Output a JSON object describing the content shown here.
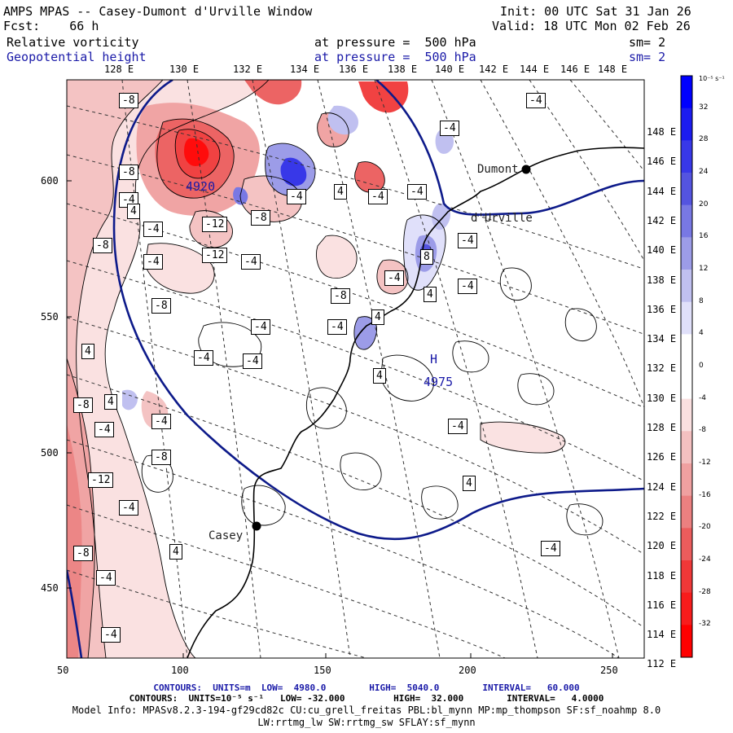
{
  "header": {
    "title": "AMPS MPAS -- Casey-Dumont d'Urville Window",
    "init": "Init: 00 UTC Sat 31 Jan 26",
    "fcst": "Fcst:    66 h",
    "valid": "Valid: 18 UTC Mon 02 Feb 26",
    "field1_name": "Relative vorticity",
    "field1_level": "at pressure =  500 hPa",
    "field1_sm": "sm= 2",
    "field2_name": "Geopotential height",
    "field2_level": "at pressure =  500 hPa",
    "field2_sm": "sm= 2"
  },
  "top_lon_labels": [
    "128 E",
    "130 E",
    "132 E",
    "134 E",
    "136 E",
    "138 E",
    "140 E",
    "142 E",
    "144 E",
    "146 E",
    "148 E"
  ],
  "right_lat_labels": [
    "148 E",
    "146 E",
    "144 E",
    "142 E",
    "140 E",
    "138 E",
    "136 E",
    "134 E",
    "132 E",
    "130 E",
    "128 E",
    "126 E",
    "124 E",
    "122 E",
    "120 E",
    "118 E",
    "116 E",
    "114 E",
    "112 E"
  ],
  "x_axis_labels": [
    "50",
    "100",
    "150",
    "200",
    "250"
  ],
  "y_axis_labels": [
    "600",
    "550",
    "500",
    "450"
  ],
  "colorbar": {
    "unit_label": "10⁻⁵ s⁻¹",
    "tick_labels": [
      "32",
      "28",
      "24",
      "20",
      "16",
      "12",
      "8",
      "4",
      "0",
      "-4",
      "-8",
      "-12",
      "-16",
      "-20",
      "-24",
      "-28",
      "-32"
    ],
    "colors": [
      "#0000ff",
      "#1c1cf0",
      "#3838e8",
      "#5454e0",
      "#7878e4",
      "#9c9ce8",
      "#c0c0f0",
      "#e0e0fa",
      "#ffffff",
      "#ffffff",
      "#fae0e0",
      "#f4c0c0",
      "#f0a0a0",
      "#ec8080",
      "#ec5c5c",
      "#f03838",
      "#f81c1c",
      "#ff0000"
    ]
  },
  "stations": {
    "dumont_label": "Dumont\nd'Urville",
    "dumont_line1": "Dumont",
    "dumont_line2": "d'Urville",
    "casey_label": "Casey"
  },
  "contour_labels": [
    "-8",
    "-8",
    "-4",
    "-4",
    "-4",
    "-4",
    "4",
    "-4",
    "-4",
    "-8",
    "-12",
    "-8",
    "-4",
    "-12",
    "-4",
    "-8",
    "-4",
    "-8",
    "-4",
    "-4",
    "8",
    "-4",
    "-4",
    "4",
    "-4",
    "-4",
    "4",
    "4",
    "-4",
    "4",
    "-8",
    "4",
    "-4",
    "-4",
    "-4",
    "-12",
    "-4",
    "4",
    "-4",
    "-8",
    "-4",
    "-8",
    "4",
    "-4",
    "4"
  ],
  "height_labels": [
    {
      "text": "4920"
    },
    {
      "text": "H"
    },
    {
      "text": "4975"
    }
  ],
  "footer": {
    "line1": "CONTOURS:  UNITS=m  LOW=  4980.0        HIGH=  5040.0        INTERVAL=   60.000",
    "line2": "CONTOURS:  UNITS=10⁻⁵ s⁻¹   LOW= -32.000         HIGH=  32.000        INTERVAL=   4.0000",
    "line3": "Model Info: MPASv8.2.3-194-gf29cd82c CU:cu_grell_freitas PBL:bl_mynn MP:mp_thompson SF:sf_noahmp 8.0",
    "line4": "LW:rrtmg_lw SW:rrtmg_sw SFLAY:sf_mynn"
  }
}
